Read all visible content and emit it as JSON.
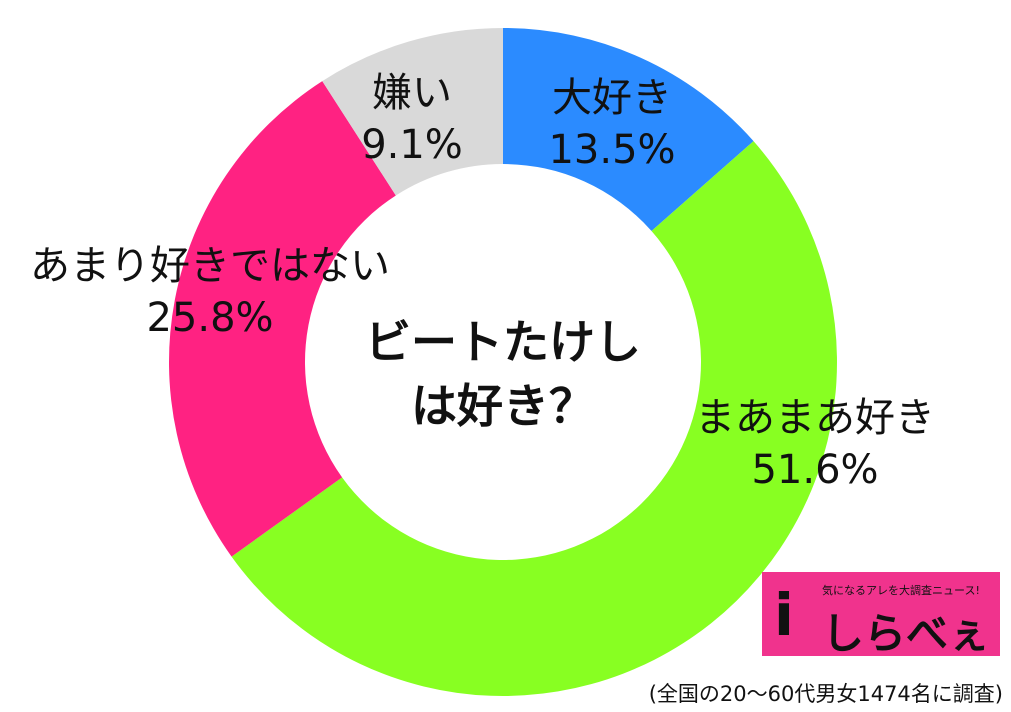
{
  "chart_data": {
    "type": "donut",
    "title": "ビートたけしは好き？",
    "categories": [
      "大好き",
      "まあまあ好き",
      "あまり好きではない",
      "嫌い"
    ],
    "values": [
      13.5,
      51.6,
      25.8,
      9.1
    ],
    "value_labels": [
      "13.5%",
      "51.6%",
      "25.8%",
      "9.1%"
    ],
    "colors": [
      "#2b8bff",
      "#88ff22",
      "#ff2282",
      "#d9d9d9"
    ],
    "logo_tagline": "気になるアレを大調査ニュース!",
    "logo_name": "しらべぇ",
    "source": "(全国の20〜60代男女1474名に調査)"
  }
}
